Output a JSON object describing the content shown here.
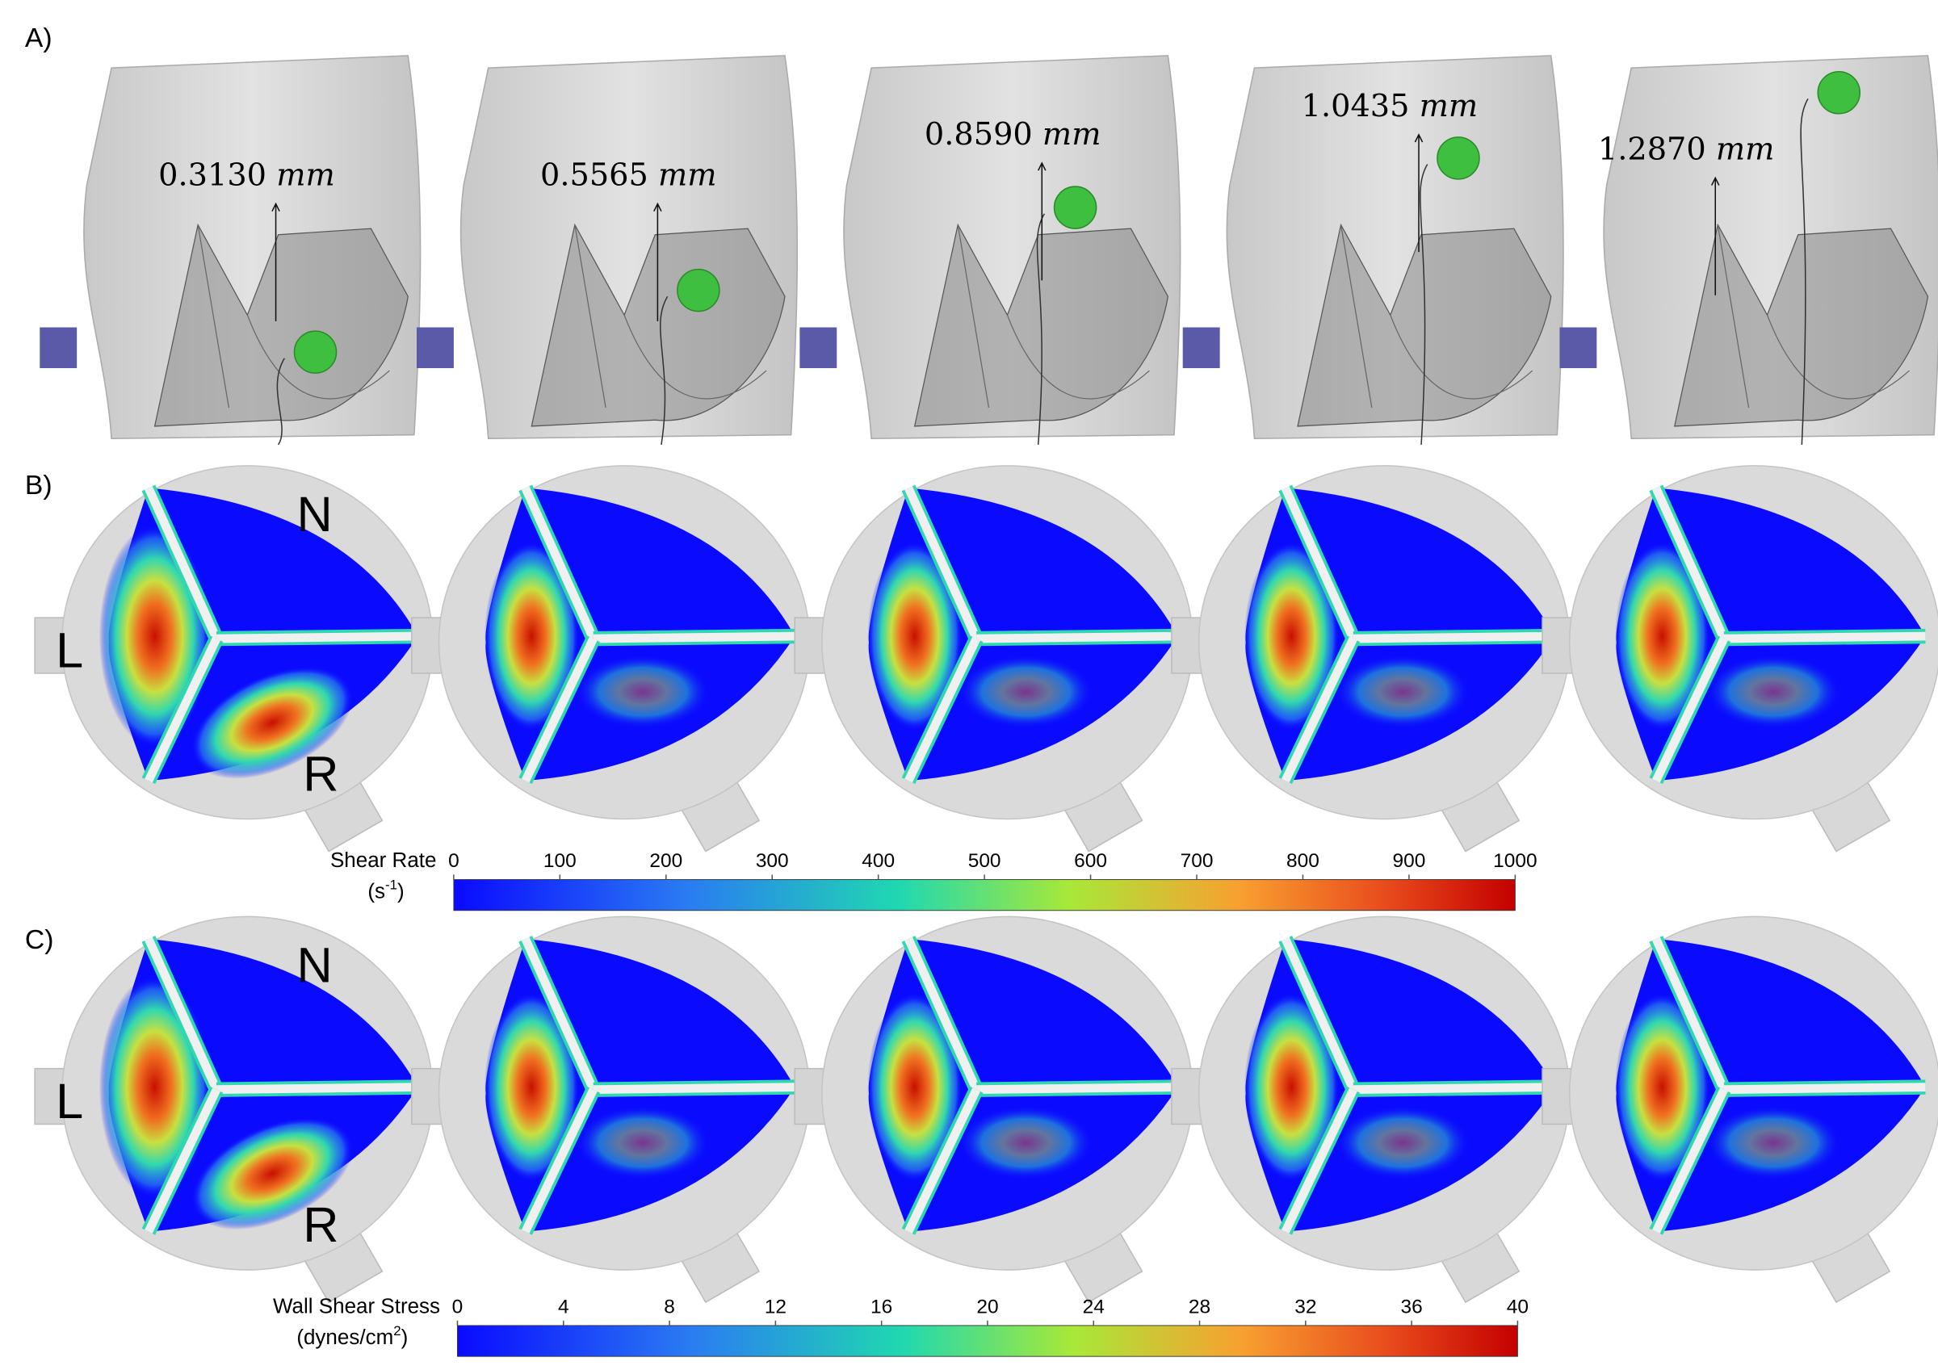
{
  "panels": [
    {
      "label": "A)",
      "annotations": [
        {
          "value": "0.3130",
          "unit": "mm"
        },
        {
          "value": "0.5565",
          "unit": "mm"
        },
        {
          "value": "0.8590",
          "unit": "mm"
        },
        {
          "value": "1.0435",
          "unit": "mm"
        },
        {
          "value": "1.2870",
          "unit": "mm"
        }
      ]
    },
    {
      "label": "B)",
      "regions": [
        "N",
        "L",
        "R"
      ]
    },
    {
      "label": "C)",
      "regions": [
        "N",
        "L",
        "R"
      ]
    }
  ],
  "colorbars": [
    {
      "title": "Shear Rate",
      "unit": {
        "open": "(s",
        "sup": "-1",
        "close": ")"
      },
      "range": [
        0,
        1000
      ],
      "ticks": [
        0,
        100,
        200,
        300,
        400,
        500,
        600,
        700,
        800,
        900,
        1000
      ]
    },
    {
      "title": "Wall Shear Stress",
      "unit": {
        "open": "(dynes/cm",
        "sup": "2",
        "close": ")"
      },
      "range": [
        0,
        40
      ],
      "ticks": [
        0,
        4,
        8,
        12,
        16,
        20,
        24,
        28,
        32,
        36,
        40
      ]
    }
  ]
}
